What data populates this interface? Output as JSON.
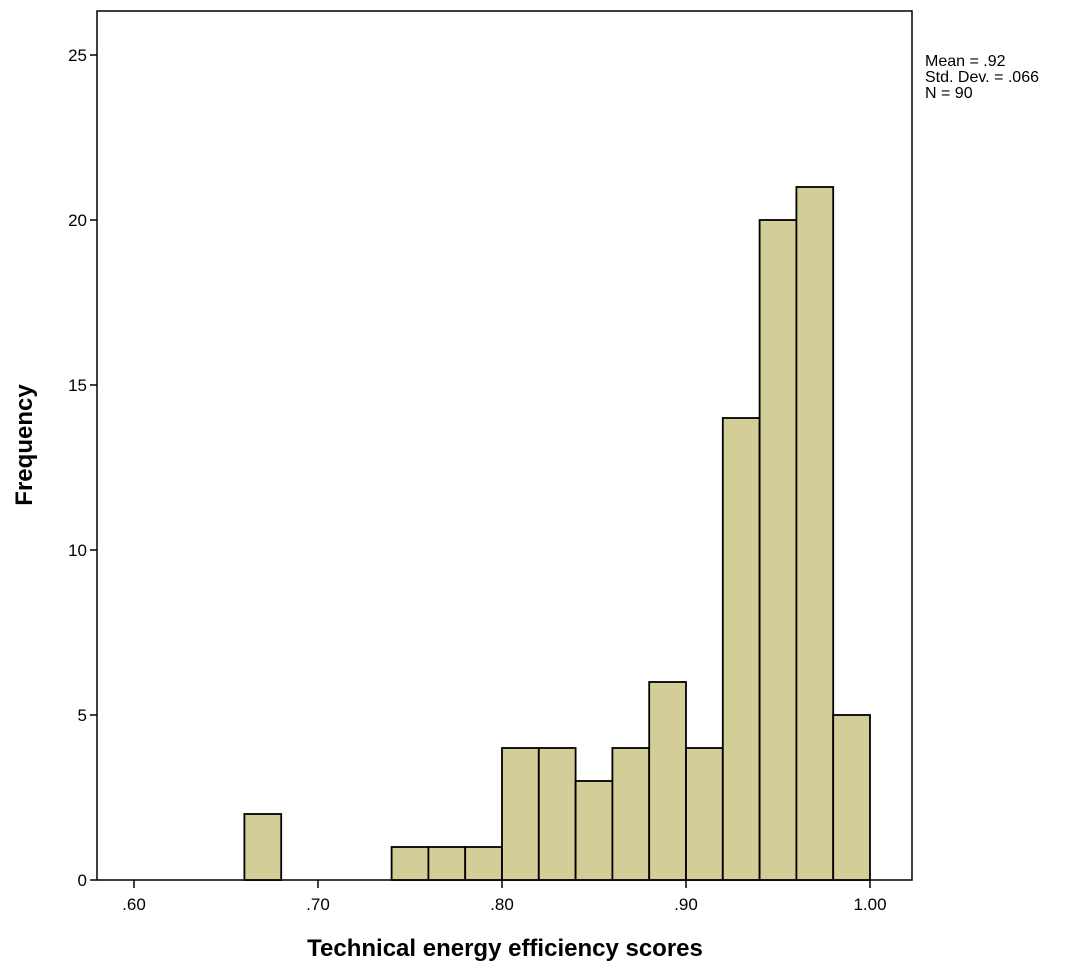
{
  "chart_data": {
    "type": "bar",
    "subtype": "histogram",
    "title": "",
    "xlabel": "Technical energy efficiency scores",
    "ylabel": "Frequency",
    "xlim": [
      0.58,
      1.02
    ],
    "ylim": [
      0,
      26.3
    ],
    "x_ticks": [
      0.6,
      0.7,
      0.8,
      0.9,
      1.0
    ],
    "x_tick_labels": [
      ".60",
      ".70",
      ".80",
      ".90",
      "1.00"
    ],
    "y_ticks": [
      0,
      5,
      10,
      15,
      20,
      25
    ],
    "y_tick_labels": [
      "0",
      "5",
      "10",
      "15",
      "20",
      "25"
    ],
    "bin_width": 0.02,
    "bins": [
      {
        "start": 0.66,
        "end": 0.68,
        "count": 2
      },
      {
        "start": 0.74,
        "end": 0.76,
        "count": 1
      },
      {
        "start": 0.76,
        "end": 0.78,
        "count": 1
      },
      {
        "start": 0.78,
        "end": 0.8,
        "count": 1
      },
      {
        "start": 0.8,
        "end": 0.82,
        "count": 4
      },
      {
        "start": 0.82,
        "end": 0.84,
        "count": 4
      },
      {
        "start": 0.84,
        "end": 0.86,
        "count": 3
      },
      {
        "start": 0.86,
        "end": 0.88,
        "count": 4
      },
      {
        "start": 0.88,
        "end": 0.9,
        "count": 6
      },
      {
        "start": 0.9,
        "end": 0.92,
        "count": 4
      },
      {
        "start": 0.92,
        "end": 0.94,
        "count": 14
      },
      {
        "start": 0.94,
        "end": 0.96,
        "count": 20
      },
      {
        "start": 0.96,
        "end": 0.98,
        "count": 21
      },
      {
        "start": 0.98,
        "end": 1.0,
        "count": 5
      }
    ],
    "stats": {
      "mean": "Mean = .92",
      "std_dev": "Std. Dev. = .066",
      "n": "N = 90"
    },
    "grid": false,
    "legend": "none",
    "bar_fill": "#D3CE97",
    "bar_stroke": "#000000"
  }
}
